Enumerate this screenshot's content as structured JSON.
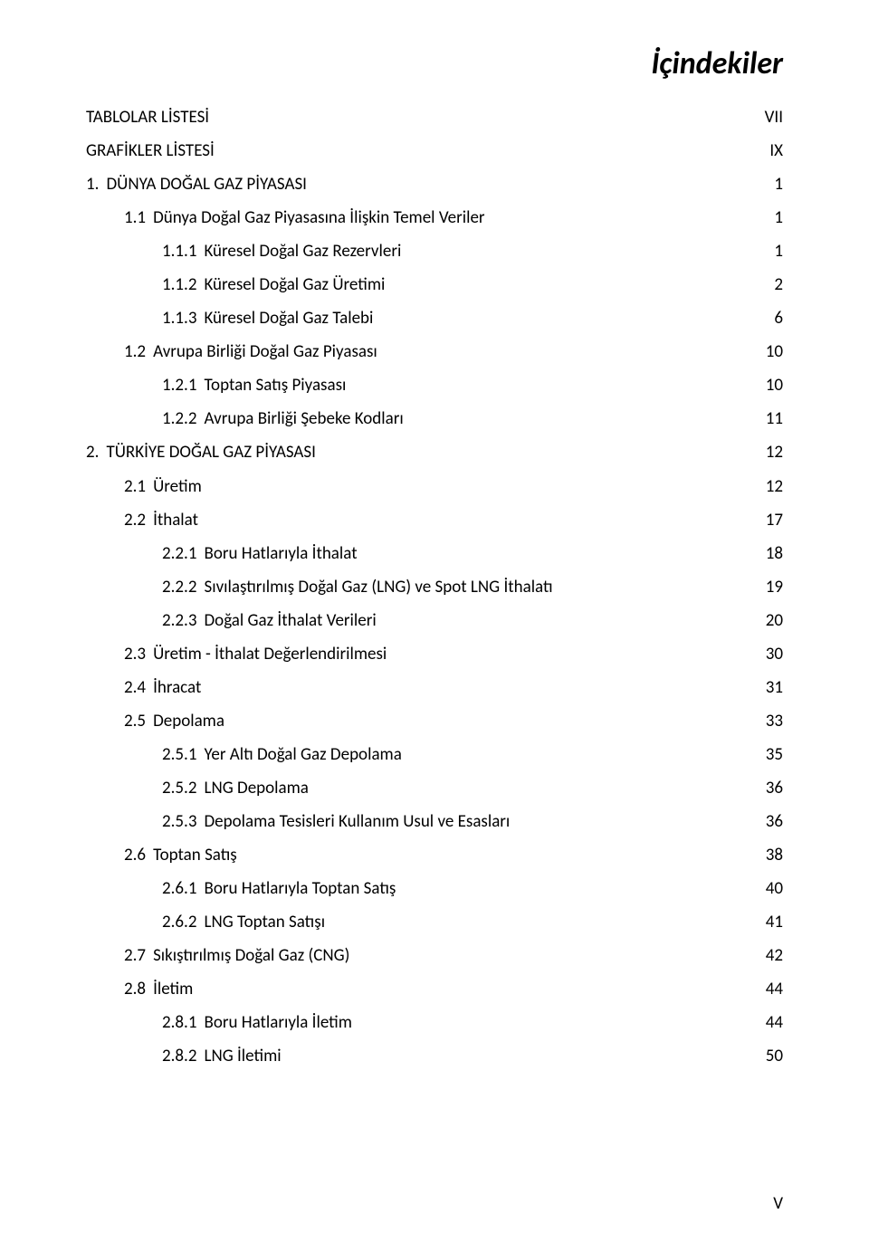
{
  "title": "İçindekiler",
  "footer_page": "V",
  "colors": {
    "text": "#000000",
    "background": "#ffffff"
  },
  "typography": {
    "title_fontsize_pt": 26,
    "body_fontsize_pt": 14,
    "font_family": "Calibri"
  },
  "toc": [
    {
      "indent": 0,
      "num": "",
      "label": "TABLOLAR LİSTESİ",
      "page": "VII"
    },
    {
      "indent": 0,
      "num": "",
      "label": "GRAFİKLER LİSTESİ",
      "page": "IX"
    },
    {
      "indent": 0,
      "num": "1.",
      "label": "DÜNYA DOĞAL GAZ PİYASASI",
      "page": "1"
    },
    {
      "indent": 1,
      "num": "1.1",
      "label": "Dünya Doğal Gaz Piyasasına İlişkin Temel Veriler",
      "page": "1"
    },
    {
      "indent": 2,
      "num": "1.1.1",
      "label": "Küresel Doğal Gaz Rezervleri",
      "page": "1"
    },
    {
      "indent": 2,
      "num": "1.1.2",
      "label": "Küresel Doğal Gaz Üretimi",
      "page": "2"
    },
    {
      "indent": 2,
      "num": "1.1.3",
      "label": "Küresel Doğal Gaz Talebi",
      "page": "6"
    },
    {
      "indent": 1,
      "num": "1.2",
      "label": "Avrupa Birliği Doğal Gaz Piyasası",
      "page": "10"
    },
    {
      "indent": 2,
      "num": "1.2.1",
      "label": "Toptan Satış Piyasası",
      "page": "10"
    },
    {
      "indent": 2,
      "num": "1.2.2",
      "label": "Avrupa Birliği Şebeke Kodları",
      "page": "11"
    },
    {
      "indent": 0,
      "num": "2.",
      "label": "TÜRKİYE DOĞAL GAZ PİYASASI",
      "page": "12"
    },
    {
      "indent": 1,
      "num": "2.1",
      "label": "Üretim",
      "page": "12"
    },
    {
      "indent": 1,
      "num": "2.2",
      "label": "İthalat",
      "page": "17"
    },
    {
      "indent": 2,
      "num": "2.2.1",
      "label": "Boru Hatlarıyla İthalat",
      "page": "18"
    },
    {
      "indent": 2,
      "num": "2.2.2",
      "label": "Sıvılaştırılmış Doğal Gaz (LNG) ve Spot LNG İthalatı",
      "page": "19"
    },
    {
      "indent": 2,
      "num": "2.2.3",
      "label": "Doğal Gaz İthalat Verileri",
      "page": "20"
    },
    {
      "indent": 1,
      "num": "2.3",
      "label": "Üretim - İthalat Değerlendirilmesi",
      "page": "30"
    },
    {
      "indent": 1,
      "num": "2.4",
      "label": "İhracat",
      "page": "31"
    },
    {
      "indent": 1,
      "num": "2.5",
      "label": "Depolama",
      "page": "33"
    },
    {
      "indent": 2,
      "num": "2.5.1",
      "label": "Yer Altı Doğal Gaz Depolama",
      "page": "35"
    },
    {
      "indent": 2,
      "num": "2.5.2",
      "label": "LNG Depolama",
      "page": "36"
    },
    {
      "indent": 2,
      "num": "2.5.3",
      "label": "Depolama Tesisleri Kullanım Usul ve Esasları",
      "page": "36"
    },
    {
      "indent": 1,
      "num": "2.6",
      "label": "Toptan Satış",
      "page": "38"
    },
    {
      "indent": 2,
      "num": "2.6.1",
      "label": "Boru Hatlarıyla Toptan Satış",
      "page": "40"
    },
    {
      "indent": 2,
      "num": "2.6.2",
      "label": "LNG Toptan Satışı",
      "page": "41"
    },
    {
      "indent": 1,
      "num": "2.7",
      "label": "Sıkıştırılmış Doğal Gaz (CNG)",
      "page": "42"
    },
    {
      "indent": 1,
      "num": "2.8",
      "label": "İletim",
      "page": "44"
    },
    {
      "indent": 2,
      "num": "2.8.1",
      "label": "Boru Hatlarıyla İletim",
      "page": "44"
    },
    {
      "indent": 2,
      "num": "2.8.2",
      "label": "LNG İletimi",
      "page": "50"
    }
  ]
}
